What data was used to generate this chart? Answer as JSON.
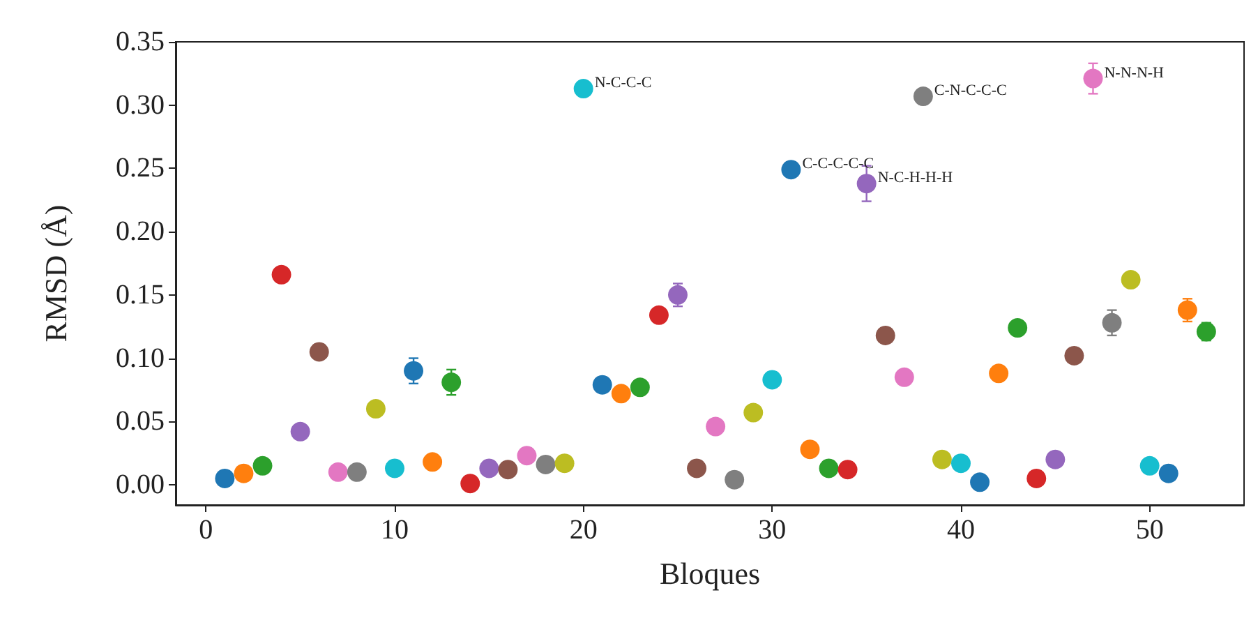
{
  "chart_data": {
    "type": "scatter",
    "xlabel": "Bloques",
    "ylabel": "RMSD (Å)",
    "x": [
      1,
      2,
      3,
      4,
      5,
      6,
      7,
      8,
      9,
      10,
      11,
      12,
      13,
      14,
      15,
      16,
      17,
      18,
      19,
      20,
      21,
      22,
      23,
      24,
      25,
      26,
      27,
      28,
      29,
      30,
      31,
      32,
      33,
      34,
      35,
      36,
      37,
      38,
      39,
      40,
      41,
      42,
      43,
      44,
      45,
      46,
      47,
      48,
      49,
      50,
      51,
      52,
      53
    ],
    "values": [
      0.005,
      0.009,
      0.015,
      0.166,
      0.042,
      0.105,
      0.01,
      0.01,
      0.06,
      0.013,
      0.09,
      0.018,
      0.081,
      0.001,
      0.013,
      0.012,
      0.023,
      0.016,
      0.017,
      0.313,
      0.079,
      0.072,
      0.077,
      0.134,
      0.15,
      0.013,
      0.046,
      0.004,
      0.057,
      0.083,
      0.249,
      0.028,
      0.013,
      0.012,
      0.238,
      0.118,
      0.085,
      0.307,
      0.02,
      0.017,
      0.002,
      0.088,
      0.124,
      0.005,
      0.02,
      0.102,
      0.321,
      0.128,
      0.162,
      0.015,
      0.009,
      0.138,
      0.121
    ],
    "errors": [
      null,
      null,
      null,
      null,
      null,
      null,
      null,
      null,
      null,
      null,
      0.01,
      null,
      0.01,
      null,
      null,
      null,
      null,
      null,
      null,
      null,
      null,
      null,
      null,
      null,
      0.009,
      null,
      null,
      null,
      null,
      null,
      null,
      null,
      null,
      null,
      0.014,
      null,
      null,
      0.004,
      null,
      null,
      null,
      null,
      null,
      null,
      null,
      null,
      0.012,
      0.01,
      null,
      null,
      null,
      0.009,
      0.007
    ],
    "colors": [
      "#1f77b4",
      "#ff7f0e",
      "#2ca02c",
      "#d62728",
      "#9467bd",
      "#8c564b",
      "#e377c2",
      "#7f7f7f",
      "#bcbd22",
      "#17becf",
      "#1f77b4",
      "#ff7f0e",
      "#2ca02c",
      "#d62728",
      "#9467bd",
      "#8c564b",
      "#e377c2",
      "#7f7f7f",
      "#bcbd22",
      "#17becf",
      "#1f77b4",
      "#ff7f0e",
      "#2ca02c",
      "#d62728",
      "#9467bd",
      "#8c564b",
      "#e377c2",
      "#7f7f7f",
      "#bcbd22",
      "#17becf",
      "#1f77b4",
      "#ff7f0e",
      "#2ca02c",
      "#d62728",
      "#9467bd",
      "#8c564b",
      "#e377c2",
      "#7f7f7f",
      "#bcbd22",
      "#17becf",
      "#1f77b4",
      "#ff7f0e",
      "#2ca02c",
      "#d62728",
      "#9467bd",
      "#8c564b",
      "#e377c2",
      "#7f7f7f",
      "#bcbd22",
      "#17becf",
      "#1f77b4",
      "#ff7f0e",
      "#2ca02c"
    ],
    "annotations": [
      {
        "text": "N-C-C-C",
        "x": 20,
        "y": 0.313
      },
      {
        "text": "C-C-C-C-C",
        "x": 31,
        "y": 0.249
      },
      {
        "text": "N-C-H-H-H",
        "x": 35,
        "y": 0.238
      },
      {
        "text": "C-N-C-C-C",
        "x": 38,
        "y": 0.307
      },
      {
        "text": "N-N-N-H",
        "x": 47,
        "y": 0.321
      }
    ],
    "xlim": [
      -1.6,
      55
    ],
    "ylim": [
      -0.016,
      0.35
    ],
    "xticks": [
      0,
      10,
      20,
      30,
      40,
      50
    ],
    "yticks": [
      {
        "value": 0,
        "label": "0.00"
      },
      {
        "value": 0.05,
        "label": "0.05"
      },
      {
        "value": 0.1,
        "label": "0.10"
      },
      {
        "value": 0.15,
        "label": "0.15"
      },
      {
        "value": 0.2,
        "label": "0.20"
      },
      {
        "value": 0.25,
        "label": "0.25"
      },
      {
        "value": 0.3,
        "label": "0.30"
      },
      {
        "value": 0.35,
        "label": "0.35"
      }
    ],
    "marker": "circle",
    "grid": false
  }
}
